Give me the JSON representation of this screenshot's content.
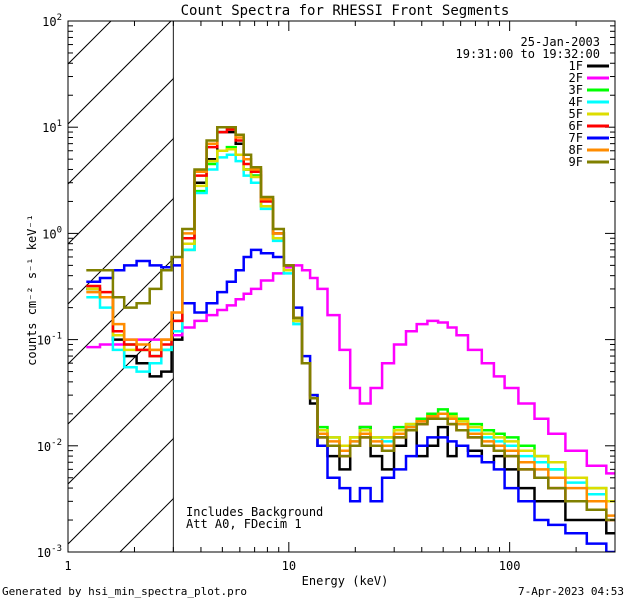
{
  "chart_data": {
    "type": "line",
    "title": "Count Spectra for RHESSI Front Segments",
    "xlabel": "Energy (keV)",
    "ylabel": "counts cm⁻² s⁻¹ keV⁻¹",
    "x_scale": "log",
    "y_scale": "log",
    "xlim": [
      1,
      300
    ],
    "ylim": [
      0.001,
      100
    ],
    "x_ticks": [
      {
        "value": 1,
        "label": "1"
      },
      {
        "value": 10,
        "label": "10"
      },
      {
        "value": 100,
        "label": "100"
      }
    ],
    "y_ticks": [
      {
        "value": 0.001,
        "mant": "10",
        "exp": "-3"
      },
      {
        "value": 0.01,
        "mant": "10",
        "exp": "-2"
      },
      {
        "value": 0.1,
        "mant": "10",
        "exp": "-1"
      },
      {
        "value": 1,
        "mant": "10",
        "exp": "0"
      },
      {
        "value": 10,
        "mant": "10",
        "exp": "1"
      },
      {
        "value": 100,
        "mant": "10",
        "exp": "2"
      }
    ],
    "shaded_region_max_kev": 3,
    "date": "25-Jan-2003",
    "time_range": "19:31:00 to 19:32:00",
    "note_line1": "Includes Background",
    "note_line2": "Att A0, FDecim 1",
    "series": [
      {
        "name": "1F",
        "color": "#000000",
        "x": [
          1.3,
          1.5,
          1.7,
          1.9,
          2.2,
          2.5,
          2.8,
          3.1,
          3.5,
          4,
          4.5,
          5,
          5.5,
          6,
          6.5,
          7,
          8,
          9,
          10,
          11,
          12,
          13,
          14,
          16,
          18,
          20,
          22,
          25,
          28,
          32,
          36,
          40,
          45,
          50,
          55,
          60,
          70,
          80,
          90,
          100,
          120,
          140,
          160,
          200,
          250,
          300
        ],
        "y": [
          0.3,
          0.25,
          0.1,
          0.07,
          0.06,
          0.045,
          0.05,
          0.1,
          0.8,
          3,
          5,
          9,
          9,
          7,
          4,
          3.5,
          2,
          1,
          0.5,
          0.15,
          0.06,
          0.025,
          0.01,
          0.008,
          0.006,
          0.01,
          0.015,
          0.008,
          0.006,
          0.01,
          0.015,
          0.008,
          0.01,
          0.015,
          0.008,
          0.01,
          0.009,
          0.007,
          0.008,
          0.006,
          0.004,
          0.003,
          0.003,
          0.002,
          0.002,
          0.0015
        ]
      },
      {
        "name": "2F",
        "color": "#ff00ff",
        "x": [
          1.3,
          1.5,
          1.7,
          1.9,
          2.2,
          2.5,
          2.8,
          3.1,
          3.5,
          4,
          4.5,
          5,
          5.5,
          6,
          6.5,
          7,
          8,
          9,
          10,
          11,
          12,
          13,
          14,
          16,
          18,
          20,
          22,
          25,
          28,
          32,
          36,
          40,
          45,
          50,
          55,
          60,
          70,
          80,
          90,
          100,
          120,
          140,
          160,
          200,
          250,
          300
        ],
        "y": [
          0.085,
          0.09,
          0.09,
          0.1,
          0.1,
          0.1,
          0.1,
          0.11,
          0.13,
          0.15,
          0.17,
          0.19,
          0.21,
          0.24,
          0.27,
          0.3,
          0.36,
          0.42,
          0.48,
          0.5,
          0.45,
          0.38,
          0.3,
          0.17,
          0.08,
          0.035,
          0.025,
          0.035,
          0.06,
          0.09,
          0.12,
          0.14,
          0.15,
          0.145,
          0.13,
          0.11,
          0.08,
          0.06,
          0.045,
          0.035,
          0.025,
          0.018,
          0.013,
          0.009,
          0.0065,
          0.0055
        ]
      },
      {
        "name": "3F",
        "color": "#00ff00",
        "x": [
          1.3,
          1.5,
          1.7,
          1.9,
          2.2,
          2.5,
          2.8,
          3.1,
          3.5,
          4,
          4.5,
          5,
          5.5,
          6,
          6.5,
          7,
          8,
          9,
          10,
          11,
          12,
          13,
          14,
          16,
          18,
          20,
          22,
          25,
          28,
          32,
          36,
          40,
          45,
          50,
          55,
          60,
          70,
          80,
          90,
          100,
          120,
          140,
          160,
          200,
          250,
          300
        ],
        "y": [
          0.3,
          0.25,
          0.12,
          0.09,
          0.08,
          0.07,
          0.08,
          0.12,
          0.7,
          2.5,
          4.5,
          6,
          6.5,
          5.5,
          4,
          3.5,
          1.8,
          0.9,
          0.45,
          0.15,
          0.06,
          0.03,
          0.015,
          0.012,
          0.01,
          0.012,
          0.015,
          0.012,
          0.012,
          0.015,
          0.016,
          0.018,
          0.02,
          0.022,
          0.02,
          0.018,
          0.016,
          0.014,
          0.013,
          0.012,
          0.01,
          0.008,
          0.006,
          0.005,
          0.004,
          0.003
        ]
      },
      {
        "name": "4F",
        "color": "#00ffff",
        "x": [
          1.3,
          1.5,
          1.7,
          1.9,
          2.2,
          2.5,
          2.8,
          3.1,
          3.5,
          4,
          4.5,
          5,
          5.5,
          6,
          6.5,
          7,
          8,
          9,
          10,
          11,
          12,
          13,
          14,
          16,
          18,
          20,
          22,
          25,
          28,
          32,
          36,
          40,
          45,
          50,
          55,
          60,
          70,
          80,
          90,
          100,
          120,
          140,
          160,
          200,
          250,
          300
        ],
        "y": [
          0.25,
          0.2,
          0.08,
          0.055,
          0.05,
          0.06,
          0.08,
          0.12,
          0.7,
          2.4,
          4,
          5.2,
          5.5,
          4.8,
          3.5,
          3,
          1.7,
          0.85,
          0.42,
          0.14,
          0.06,
          0.028,
          0.014,
          0.012,
          0.01,
          0.011,
          0.014,
          0.012,
          0.011,
          0.014,
          0.015,
          0.017,
          0.018,
          0.02,
          0.018,
          0.016,
          0.014,
          0.012,
          0.011,
          0.01,
          0.008,
          0.007,
          0.006,
          0.0045,
          0.0035,
          0.003
        ]
      },
      {
        "name": "5F",
        "color": "#dddd00",
        "x": [
          1.3,
          1.5,
          1.7,
          1.9,
          2.2,
          2.5,
          2.8,
          3.1,
          3.5,
          4,
          4.5,
          5,
          5.5,
          6,
          6.5,
          7,
          8,
          9,
          10,
          11,
          12,
          13,
          14,
          16,
          18,
          20,
          22,
          25,
          28,
          32,
          36,
          40,
          45,
          50,
          55,
          60,
          70,
          80,
          90,
          100,
          120,
          140,
          160,
          200,
          250,
          300
        ],
        "y": [
          0.3,
          0.25,
          0.11,
          0.08,
          0.08,
          0.08,
          0.1,
          0.15,
          0.8,
          2.8,
          4.8,
          6,
          6.2,
          5.5,
          4,
          3.4,
          1.8,
          0.9,
          0.45,
          0.15,
          0.06,
          0.03,
          0.014,
          0.012,
          0.01,
          0.012,
          0.014,
          0.012,
          0.012,
          0.014,
          0.016,
          0.017,
          0.019,
          0.02,
          0.019,
          0.017,
          0.015,
          0.013,
          0.012,
          0.011,
          0.009,
          0.008,
          0.007,
          0.005,
          0.004,
          0.003
        ]
      },
      {
        "name": "6F",
        "color": "#ff0000",
        "x": [
          1.3,
          1.5,
          1.7,
          1.9,
          2.2,
          2.5,
          2.8,
          3.1,
          3.5,
          4,
          4.5,
          5,
          5.5,
          6,
          6.5,
          7,
          8,
          9,
          10,
          11,
          12,
          13,
          14,
          16,
          18,
          20,
          22,
          25,
          28,
          32,
          36,
          40,
          45,
          50,
          55,
          60,
          70,
          80,
          90,
          100,
          120,
          140,
          160,
          200,
          250,
          300
        ],
        "y": [
          0.32,
          0.28,
          0.12,
          0.09,
          0.08,
          0.07,
          0.09,
          0.15,
          0.9,
          3.5,
          6.5,
          9,
          9.5,
          7.5,
          4.5,
          3.8,
          2,
          1,
          0.5,
          0.16,
          0.06,
          0.028,
          0.012,
          0.01,
          0.008,
          0.01,
          0.012,
          0.01,
          0.009,
          0.012,
          0.014,
          0.016,
          0.018,
          0.018,
          0.016,
          0.014,
          0.012,
          0.01,
          0.009,
          0.008,
          0.006,
          0.005,
          0.004,
          0.003,
          0.0025,
          0.002
        ]
      },
      {
        "name": "7F",
        "color": "#0000ff",
        "x": [
          1.3,
          1.5,
          1.7,
          1.9,
          2.2,
          2.5,
          2.8,
          3.1,
          3.5,
          4,
          4.5,
          5,
          5.5,
          6,
          6.5,
          7,
          8,
          9,
          10,
          11,
          12,
          13,
          14,
          16,
          18,
          20,
          22,
          25,
          28,
          32,
          36,
          40,
          45,
          50,
          55,
          60,
          70,
          80,
          90,
          100,
          120,
          140,
          160,
          200,
          250,
          300
        ],
        "y": [
          0.35,
          0.38,
          0.45,
          0.5,
          0.55,
          0.5,
          0.48,
          0.5,
          0.22,
          0.18,
          0.22,
          0.28,
          0.35,
          0.45,
          0.6,
          0.7,
          0.65,
          0.6,
          0.5,
          0.2,
          0.07,
          0.03,
          0.01,
          0.005,
          0.004,
          0.003,
          0.004,
          0.003,
          0.005,
          0.006,
          0.008,
          0.01,
          0.012,
          0.012,
          0.011,
          0.01,
          0.008,
          0.007,
          0.006,
          0.004,
          0.003,
          0.002,
          0.0018,
          0.0015,
          0.0012,
          0.001
        ]
      },
      {
        "name": "8F",
        "color": "#ff8c00",
        "x": [
          1.3,
          1.5,
          1.7,
          1.9,
          2.2,
          2.5,
          2.8,
          3.1,
          3.5,
          4,
          4.5,
          5,
          5.5,
          6,
          6.5,
          7,
          8,
          9,
          10,
          11,
          12,
          13,
          14,
          16,
          18,
          20,
          22,
          25,
          28,
          32,
          36,
          40,
          45,
          50,
          55,
          60,
          70,
          80,
          90,
          100,
          120,
          140,
          160,
          200,
          250,
          300
        ],
        "y": [
          0.28,
          0.25,
          0.14,
          0.1,
          0.09,
          0.08,
          0.1,
          0.18,
          1,
          3.8,
          7,
          10,
          10,
          8,
          5,
          4,
          2.1,
          1,
          0.5,
          0.16,
          0.06,
          0.028,
          0.013,
          0.011,
          0.009,
          0.011,
          0.013,
          0.011,
          0.01,
          0.013,
          0.015,
          0.017,
          0.019,
          0.02,
          0.018,
          0.016,
          0.013,
          0.011,
          0.01,
          0.009,
          0.007,
          0.006,
          0.005,
          0.004,
          0.003,
          0.0022
        ]
      },
      {
        "name": "9F",
        "color": "#808000",
        "x": [
          1.3,
          1.5,
          1.7,
          1.9,
          2.2,
          2.5,
          2.8,
          3.1,
          3.5,
          4,
          4.5,
          5,
          5.5,
          6,
          6.5,
          7,
          8,
          9,
          10,
          11,
          12,
          13,
          14,
          16,
          18,
          20,
          22,
          25,
          28,
          32,
          36,
          40,
          45,
          50,
          55,
          60,
          70,
          80,
          90,
          100,
          120,
          140,
          160,
          200,
          250,
          300
        ],
        "y": [
          0.45,
          0.45,
          0.25,
          0.2,
          0.22,
          0.3,
          0.45,
          0.6,
          1.1,
          4,
          7.5,
          10,
          10,
          8.5,
          5.5,
          4.2,
          2.2,
          1.1,
          0.5,
          0.16,
          0.06,
          0.028,
          0.012,
          0.01,
          0.008,
          0.01,
          0.012,
          0.01,
          0.009,
          0.012,
          0.014,
          0.016,
          0.018,
          0.018,
          0.016,
          0.014,
          0.012,
          0.01,
          0.009,
          0.008,
          0.006,
          0.005,
          0.004,
          0.003,
          0.0025,
          0.002
        ]
      }
    ]
  },
  "footer": {
    "generated_by": "Generated by hsi_min_spectra_plot.pro",
    "timestamp": "7-Apr-2023 04:53"
  }
}
